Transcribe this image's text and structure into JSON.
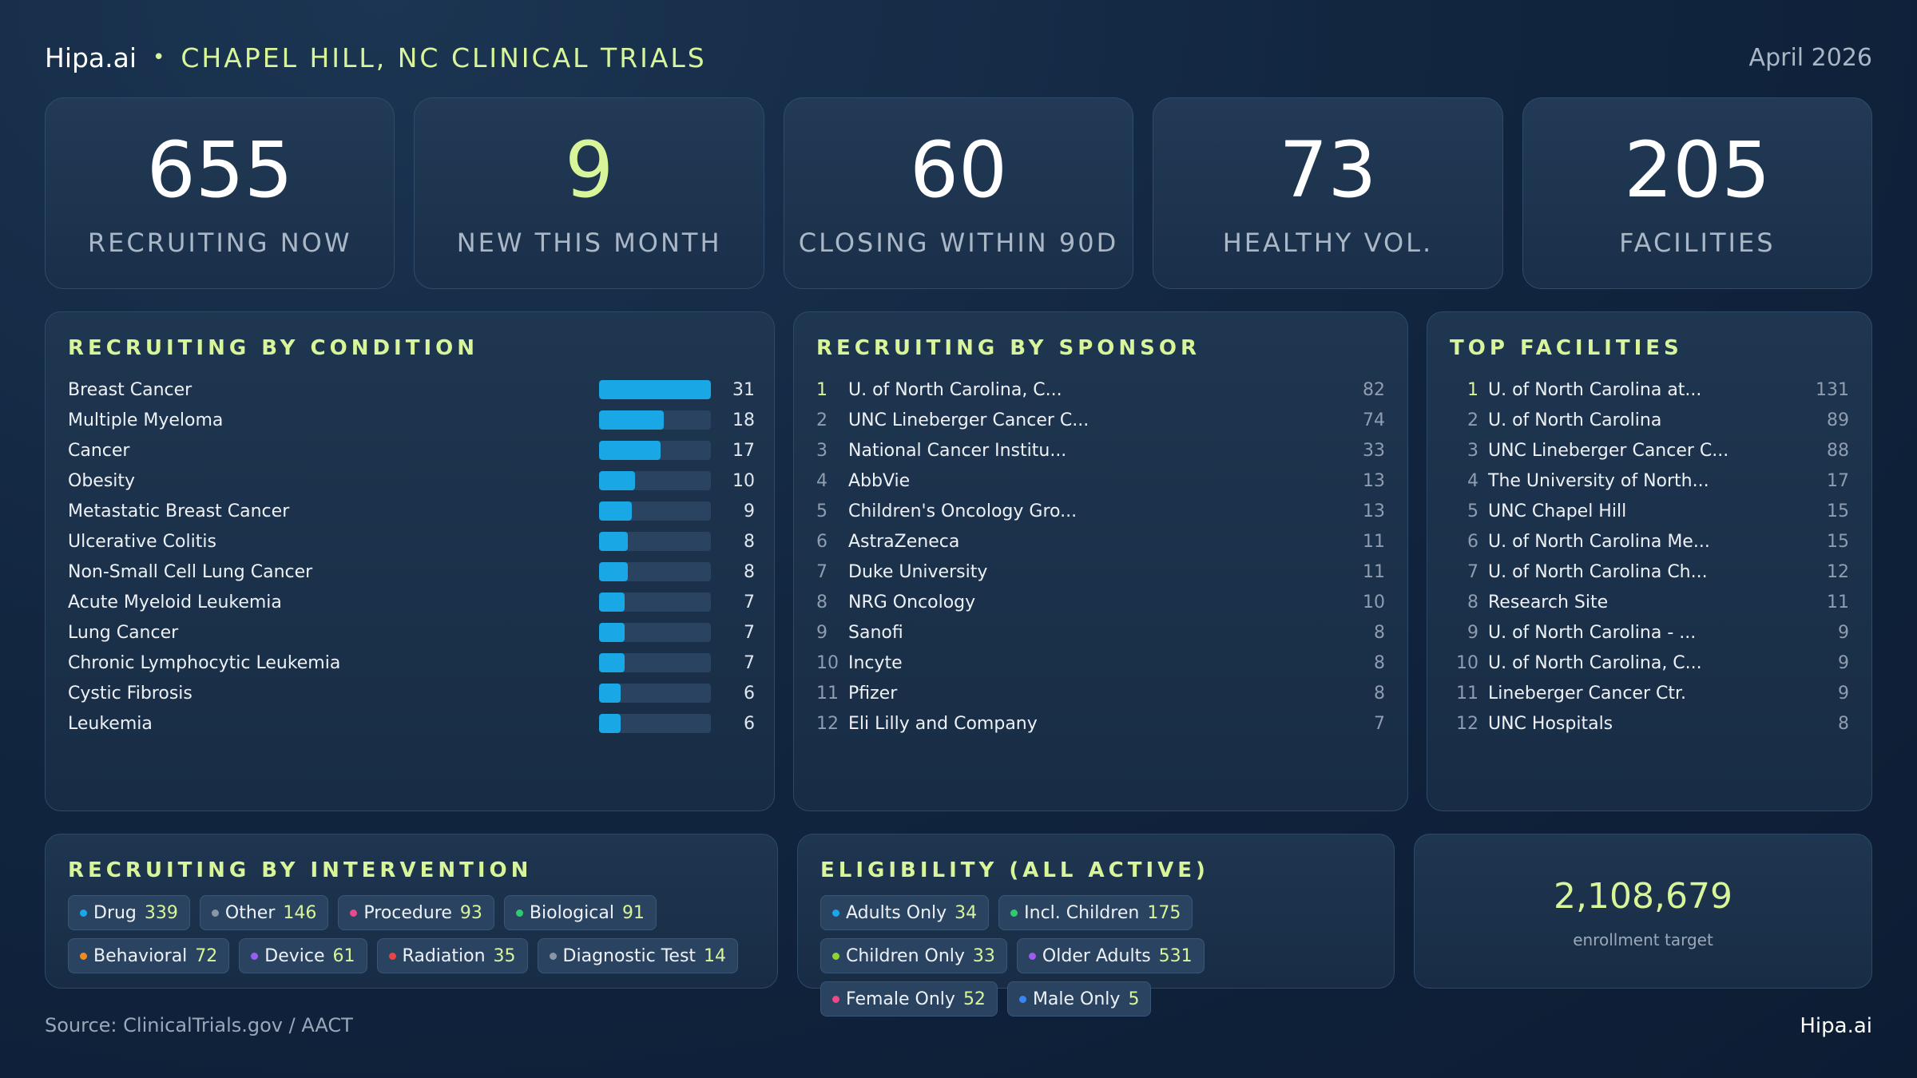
{
  "header": {
    "brand": "Hipa.ai",
    "separator": "•",
    "region": "CHAPEL HILL, NC CLINICAL TRIALS",
    "date": "April 2026"
  },
  "kpis": [
    {
      "value": "655",
      "label": "RECRUITING NOW"
    },
    {
      "value": "9",
      "label": "NEW THIS MONTH"
    },
    {
      "value": "60",
      "label": "CLOSING WITHIN 90D"
    },
    {
      "value": "73",
      "label": "HEALTHY VOL."
    },
    {
      "value": "205",
      "label": "FACILITIES"
    }
  ],
  "conditions": {
    "title": "RECRUITING BY CONDITION",
    "max": 31,
    "items": [
      {
        "name": "Breast Cancer",
        "count": 31
      },
      {
        "name": "Multiple Myeloma",
        "count": 18
      },
      {
        "name": "Cancer",
        "count": 17
      },
      {
        "name": "Obesity",
        "count": 10
      },
      {
        "name": "Metastatic Breast Cancer",
        "count": 9
      },
      {
        "name": "Ulcerative Colitis",
        "count": 8
      },
      {
        "name": "Non-Small Cell Lung Cancer",
        "count": 8
      },
      {
        "name": "Acute Myeloid Leukemia",
        "count": 7
      },
      {
        "name": "Lung Cancer",
        "count": 7
      },
      {
        "name": "Chronic Lymphocytic Leukemia",
        "count": 7
      },
      {
        "name": "Cystic Fibrosis",
        "count": 6
      },
      {
        "name": "Leukemia",
        "count": 6
      }
    ]
  },
  "sponsors": {
    "title": "RECRUITING BY SPONSOR",
    "items": [
      {
        "rank": "1",
        "name": "U. of North Carolina, C...",
        "count": "82"
      },
      {
        "rank": "2",
        "name": "UNC Lineberger Cancer C...",
        "count": "74"
      },
      {
        "rank": "3",
        "name": "National Cancer Institu...",
        "count": "33"
      },
      {
        "rank": "4",
        "name": "AbbVie",
        "count": "13"
      },
      {
        "rank": "5",
        "name": "Children's Oncology Gro...",
        "count": "13"
      },
      {
        "rank": "6",
        "name": "AstraZeneca",
        "count": "11"
      },
      {
        "rank": "7",
        "name": "Duke University",
        "count": "11"
      },
      {
        "rank": "8",
        "name": "NRG Oncology",
        "count": "10"
      },
      {
        "rank": "9",
        "name": "Sanofi",
        "count": "8"
      },
      {
        "rank": "10",
        "name": "Incyte",
        "count": "8"
      },
      {
        "rank": "11",
        "name": "Pfizer",
        "count": "8"
      },
      {
        "rank": "12",
        "name": "Eli Lilly and Company",
        "count": "7"
      }
    ]
  },
  "facilities": {
    "title": "TOP FACILITIES",
    "items": [
      {
        "rank": "1",
        "name": "U. of North Carolina at...",
        "count": "131"
      },
      {
        "rank": "2",
        "name": "U. of North Carolina",
        "count": "89"
      },
      {
        "rank": "3",
        "name": "UNC Lineberger Cancer C...",
        "count": "88"
      },
      {
        "rank": "4",
        "name": "The University of North...",
        "count": "17"
      },
      {
        "rank": "5",
        "name": "UNC Chapel Hill",
        "count": "15"
      },
      {
        "rank": "6",
        "name": "U. of North Carolina Me...",
        "count": "15"
      },
      {
        "rank": "7",
        "name": "U. of North Carolina Ch...",
        "count": "12"
      },
      {
        "rank": "8",
        "name": "Research Site",
        "count": "11"
      },
      {
        "rank": "9",
        "name": "U. of North Carolina - ...",
        "count": "9"
      },
      {
        "rank": "10",
        "name": "U. of North Carolina, C...",
        "count": "9"
      },
      {
        "rank": "11",
        "name": "Lineberger Cancer Ctr.",
        "count": "9"
      },
      {
        "rank": "12",
        "name": "UNC Hospitals",
        "count": "8"
      }
    ]
  },
  "interventions": {
    "title": "RECRUITING BY INTERVENTION",
    "items": [
      {
        "label": "Drug",
        "value": "339",
        "color": "#1aa7e6"
      },
      {
        "label": "Other",
        "value": "146",
        "color": "#8a96a6"
      },
      {
        "label": "Procedure",
        "value": "93",
        "color": "#e84a8a"
      },
      {
        "label": "Biological",
        "value": "91",
        "color": "#2ecc71"
      },
      {
        "label": "Behavioral",
        "value": "72",
        "color": "#f08a24"
      },
      {
        "label": "Device",
        "value": "61",
        "color": "#9b5cf0"
      },
      {
        "label": "Radiation",
        "value": "35",
        "color": "#e84545"
      },
      {
        "label": "Diagnostic Test",
        "value": "14",
        "color": "#8a96a6"
      }
    ]
  },
  "eligibility": {
    "title": "ELIGIBILITY (ALL ACTIVE)",
    "items": [
      {
        "label": "Adults Only",
        "value": "34",
        "color": "#1aa7e6"
      },
      {
        "label": "Incl. Children",
        "value": "175",
        "color": "#2ecc71"
      },
      {
        "label": "Children Only",
        "value": "33",
        "color": "#8fd33a"
      },
      {
        "label": "Older Adults",
        "value": "531",
        "color": "#9b5cf0"
      },
      {
        "label": "Female Only",
        "value": "52",
        "color": "#e84a8a"
      },
      {
        "label": "Male Only",
        "value": "5",
        "color": "#3a86f0"
      }
    ]
  },
  "enrollment": {
    "value": "2,108,679",
    "label": "enrollment target"
  },
  "footer": {
    "source": "Source: ClinicalTrials.gov / AACT",
    "brand": "Hipa.ai"
  },
  "colors": {
    "accent": "#d8f59a",
    "bar": "#1aa7e6"
  }
}
